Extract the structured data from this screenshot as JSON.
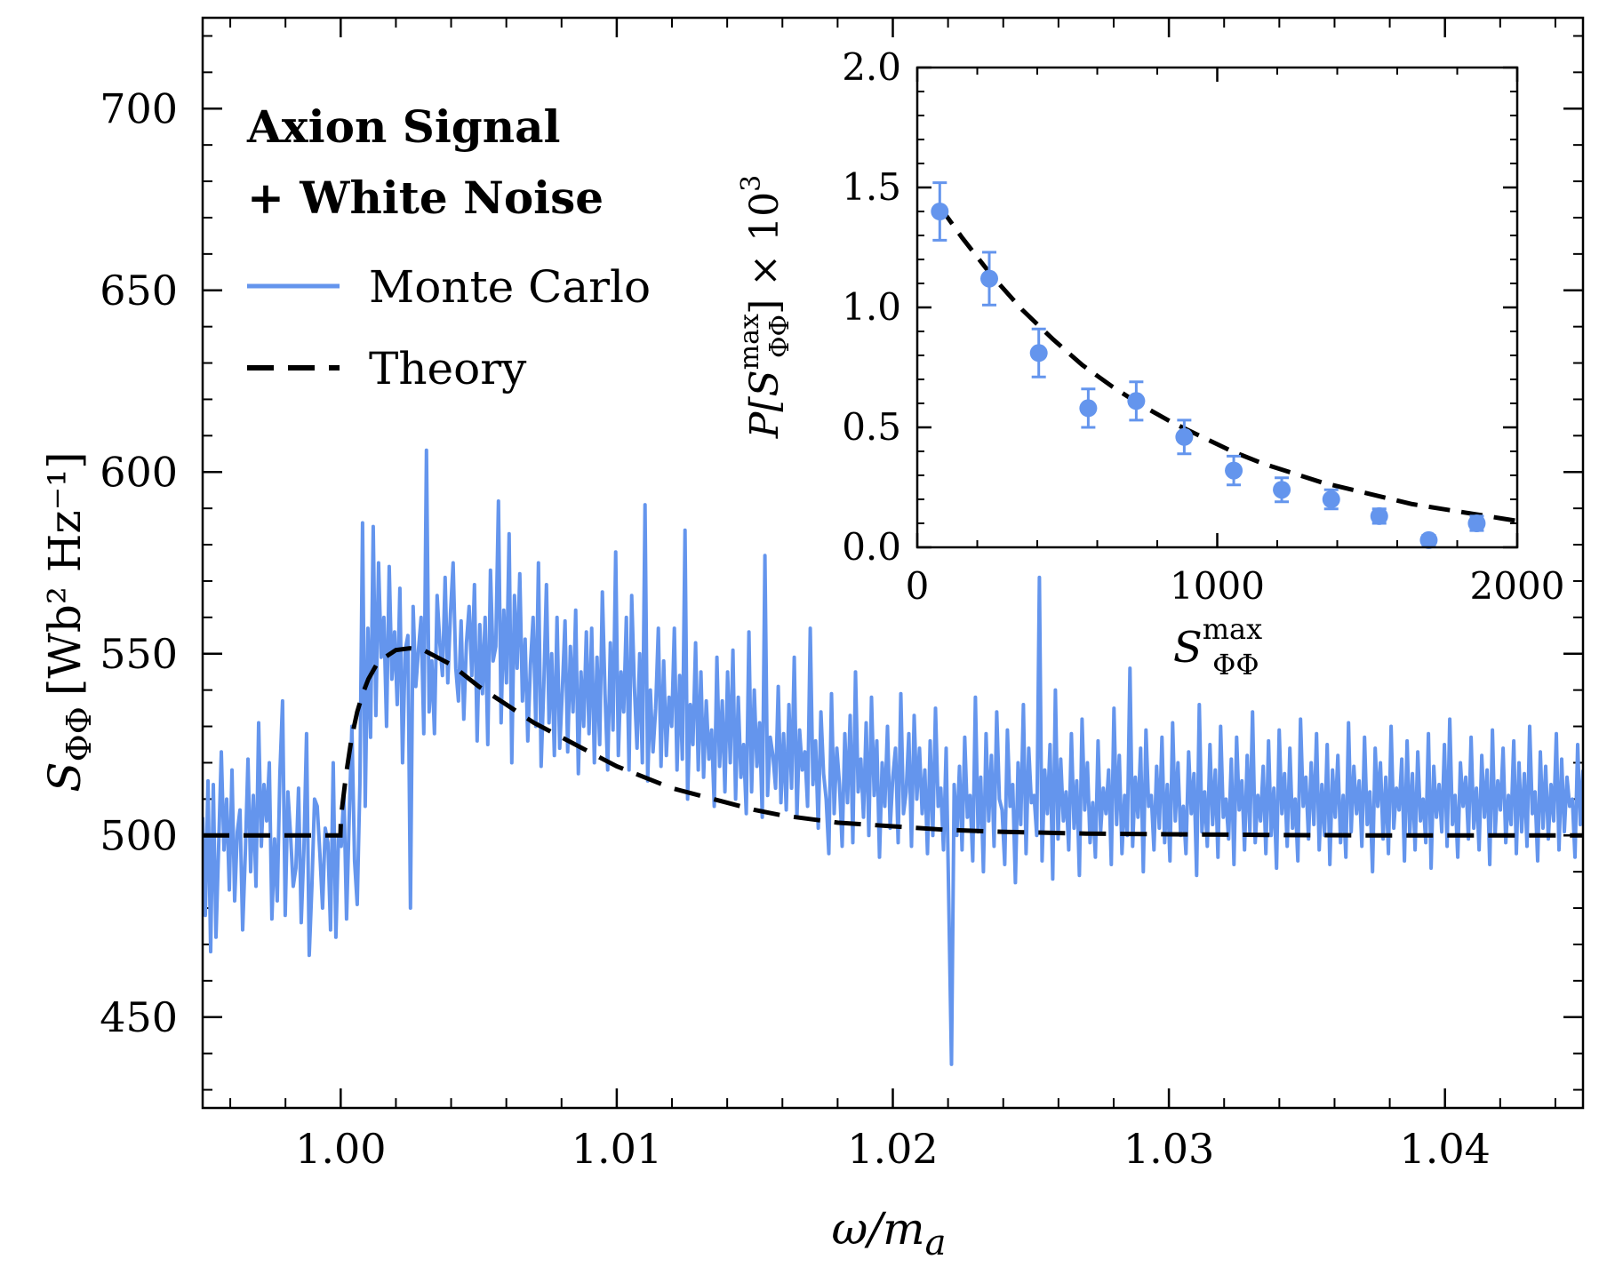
{
  "colors": {
    "monte_carlo": "#6495ED",
    "theory": "#000000",
    "axes": "#000000",
    "background": "#ffffff"
  },
  "legend": {
    "title_line1": "Axion Signal",
    "title_line2": "+ White Noise",
    "monte_carlo_label": "Monte Carlo",
    "theory_label": "Theory",
    "placement": "top-left"
  },
  "main_axes": {
    "xlabel": "ω/m",
    "xlabel_sub": "a",
    "ylabel_main": "S",
    "ylabel_sub": "ΦΦ",
    "ylabel_units": "[Wb² Hz⁻¹]",
    "xlim": [
      0.995,
      1.045
    ],
    "ylim": [
      425,
      725
    ],
    "xticks": [
      1.0,
      1.01,
      1.02,
      1.03,
      1.04
    ],
    "xtick_labels": [
      "1.00",
      "1.01",
      "1.02",
      "1.03",
      "1.04"
    ],
    "yticks": [
      450,
      500,
      550,
      600,
      650,
      700
    ],
    "ytick_labels": [
      "450",
      "500",
      "550",
      "600",
      "650",
      "700"
    ]
  },
  "inset_axes": {
    "xlabel_main": "S",
    "xlabel_sup": "max",
    "xlabel_sub": "ΦΦ",
    "ylabel_prefix": "P[S",
    "ylabel_sup": "max",
    "ylabel_sub": "ΦΦ",
    "ylabel_suffix": "] × 10",
    "ylabel_exp": "3",
    "xlim": [
      0,
      2000
    ],
    "ylim": [
      0,
      2.0
    ],
    "xticks": [
      0,
      1000,
      2000
    ],
    "xtick_labels": [
      "0",
      "1000",
      "2000"
    ],
    "yticks": [
      0,
      0.5,
      1.0,
      1.5,
      2.0
    ],
    "ytick_labels": [
      "0.0",
      "0.5",
      "1.0",
      "1.5",
      "2.0"
    ]
  },
  "chart_data": [
    {
      "type": "line",
      "series": [
        {
          "name": "Monte Carlo",
          "x_start": 0.995,
          "x_end": 1.045,
          "y": [
            505,
            478,
            515,
            468,
            514,
            472,
            497,
            523,
            496,
            510,
            485,
            518,
            482,
            501,
            507,
            474,
            495,
            521,
            490,
            511,
            486,
            531,
            497,
            514,
            504,
            520,
            477,
            499,
            482,
            517,
            537,
            478,
            512,
            500,
            486,
            491,
            513,
            476,
            496,
            528,
            467,
            486,
            510,
            508,
            495,
            480,
            502,
            498,
            474,
            520,
            472,
            500,
            497,
            512,
            477,
            505,
            530,
            493,
            481,
            514,
            586,
            508,
            557,
            527,
            585,
            533,
            575,
            549,
            560,
            530,
            574,
            543,
            556,
            536,
            568,
            520,
            551,
            555,
            480,
            563,
            541,
            551,
            560,
            528,
            606,
            534,
            548,
            528,
            566,
            553,
            544,
            571,
            542,
            561,
            575,
            546,
            537,
            559,
            532,
            553,
            563,
            544,
            569,
            526,
            558,
            539,
            560,
            525,
            573,
            548,
            552,
            592,
            531,
            562,
            542,
            583,
            520,
            566,
            546,
            572,
            537,
            554,
            526,
            547,
            560,
            530,
            575,
            519,
            541,
            569,
            531,
            550,
            522,
            560,
            524,
            540,
            559,
            523,
            552,
            534,
            562,
            517,
            545,
            530,
            556,
            528,
            557,
            520,
            549,
            525,
            567,
            539,
            518,
            553,
            529,
            578,
            522,
            545,
            534,
            560,
            518,
            566,
            541,
            524,
            550,
            520,
            591,
            515,
            540,
            523,
            535,
            557,
            519,
            548,
            522,
            538,
            530,
            557,
            518,
            544,
            521,
            584,
            510,
            536,
            525,
            553,
            518,
            545,
            516,
            537,
            521,
            529,
            508,
            549,
            519,
            537,
            512,
            545,
            520,
            551,
            510,
            538,
            516,
            525,
            506,
            556,
            512,
            540,
            519,
            531,
            505,
            577,
            511,
            527,
            522,
            513,
            541,
            509,
            528,
            507,
            536,
            513,
            549,
            505,
            529,
            518,
            523,
            508,
            557,
            514,
            526,
            502,
            534,
            517,
            510,
            495,
            539,
            506,
            524,
            514,
            497,
            528,
            509,
            533,
            498,
            545,
            512,
            521,
            505,
            531,
            500,
            538,
            511,
            526,
            494,
            520,
            508,
            530,
            502,
            516,
            524,
            498,
            539,
            506,
            512,
            528,
            497,
            533,
            510,
            524,
            506,
            518,
            495,
            526,
            500,
            535,
            508,
            513,
            496,
            524,
            481,
            437,
            514,
            500,
            519,
            496,
            527,
            505,
            511,
            493,
            538,
            501,
            516,
            490,
            528,
            504,
            522,
            497,
            534,
            510,
            507,
            492,
            529,
            508,
            514,
            487,
            520,
            503,
            536,
            495,
            524,
            509,
            511,
            500,
            571,
            493,
            518,
            506,
            525,
            488,
            540,
            499,
            521,
            504,
            512,
            496,
            528,
            502,
            515,
            489,
            532,
            507,
            520,
            498,
            509,
            494,
            526,
            501,
            513,
            506,
            518,
            492,
            535,
            503,
            522,
            495,
            511,
            500,
            546,
            497,
            516,
            505,
            524,
            490,
            529,
            508,
            511,
            496,
            519,
            502,
            527,
            498,
            514,
            493,
            531,
            504,
            520,
            500,
            508,
            495,
            523,
            506,
            517,
            489,
            536,
            501,
            512,
            497,
            525,
            503,
            518,
            494,
            530,
            505,
            510,
            499,
            521,
            492,
            527,
            507,
            515,
            496,
            522,
            501,
            534,
            498,
            511,
            504,
            519,
            495,
            526,
            500,
            513,
            491,
            529,
            506,
            517,
            497,
            524,
            502,
            510,
            493,
            532,
            508,
            516,
            499,
            520,
            503,
            528,
            496,
            514,
            500,
            525,
            492,
            518,
            505,
            522,
            498,
            511,
            494,
            531,
            501,
            519,
            506,
            515,
            497,
            527,
            503,
            512,
            490,
            524,
            508,
            520,
            499,
            516,
            495,
            530,
            502,
            513,
            507,
            521,
            493,
            526,
            500,
            517,
            496,
            523,
            504,
            510,
            498,
            528,
            491,
            519,
            505,
            514,
            501,
            525,
            497,
            532,
            503,
            511,
            494,
            520,
            508,
            516,
            499,
            527,
            502,
            513,
            496,
            522,
            505,
            518,
            492,
            529,
            500,
            515,
            507,
            524,
            498,
            511,
            503,
            526,
            495,
            520,
            501,
            517,
            497,
            530,
            506,
            512,
            493,
            523,
            502,
            519,
            499,
            514,
            504,
            528,
            496,
            521,
            501,
            516,
            508,
            510,
            494,
            525,
            503,
            518
          ]
        },
        {
          "name": "Theory",
          "x": [
            0.995,
            0.99999,
            1.00001,
            1.0002,
            1.0004,
            1.0006,
            1.0008,
            1.001,
            1.0013,
            1.0016,
            1.002,
            1.0025,
            1.003,
            1.0035,
            1.004,
            1.005,
            1.006,
            1.007,
            1.008,
            1.009,
            1.01,
            1.011,
            1.012,
            1.013,
            1.014,
            1.015,
            1.016,
            1.017,
            1.018,
            1.02,
            1.022,
            1.024,
            1.027,
            1.03,
            1.034,
            1.038,
            1.045
          ],
          "y": [
            500,
            500,
            505,
            517,
            527,
            534,
            539,
            543,
            547,
            549,
            551,
            551.5,
            551,
            549,
            547,
            541,
            536,
            531,
            527,
            523,
            519,
            516,
            513,
            511,
            509,
            507,
            505.5,
            504.5,
            503.5,
            502.5,
            501.5,
            501,
            500.5,
            500.3,
            500.1,
            500,
            500
          ]
        }
      ],
      "xlabel": "ω/m_a",
      "ylabel": "S_ΦΦ [Wb² Hz⁻¹]",
      "xlim": [
        0.995,
        1.045
      ],
      "ylim": [
        425,
        725
      ],
      "grid": false,
      "legend": "top-left"
    },
    {
      "type": "scatter",
      "series": [
        {
          "name": "Monte Carlo",
          "x": [
            75,
            240,
            405,
            570,
            730,
            890,
            1055,
            1215,
            1380,
            1540,
            1705,
            1865
          ],
          "y": [
            1.4,
            1.12,
            0.81,
            0.58,
            0.61,
            0.46,
            0.32,
            0.24,
            0.2,
            0.13,
            0.03,
            0.1
          ],
          "err": [
            0.12,
            0.11,
            0.1,
            0.08,
            0.08,
            0.07,
            0.06,
            0.05,
            0.04,
            0.03,
            0.02,
            0.03
          ]
        },
        {
          "name": "Theory",
          "x": [
            75,
            150,
            250,
            350,
            450,
            550,
            650,
            750,
            850,
            950,
            1050,
            1150,
            1250,
            1350,
            1450,
            1550,
            1650,
            1750,
            1850,
            1950,
            2000
          ],
          "y": [
            1.42,
            1.29,
            1.13,
            0.99,
            0.87,
            0.76,
            0.67,
            0.59,
            0.52,
            0.46,
            0.4,
            0.35,
            0.31,
            0.27,
            0.24,
            0.21,
            0.18,
            0.16,
            0.14,
            0.12,
            0.11
          ]
        }
      ],
      "xlabel": "S_ΦΦ^max",
      "ylabel": "P[S_ΦΦ^max] × 10³",
      "xlim": [
        0,
        2000
      ],
      "ylim": [
        0,
        2.0
      ],
      "grid": false
    }
  ]
}
